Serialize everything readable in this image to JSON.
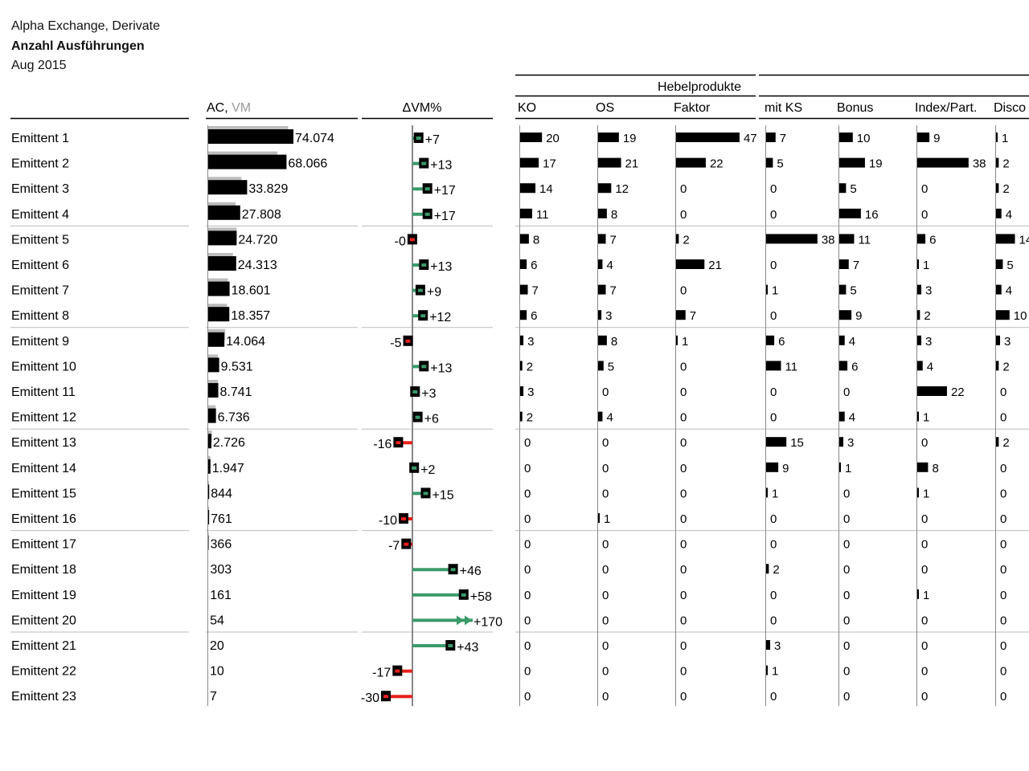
{
  "title": {
    "line1": "Alpha Exchange, Derivate",
    "line2": "Anzahl Ausführungen",
    "line3": "Aug 2015"
  },
  "colors": {
    "bar": "#000000",
    "vm_bar": "#bdbdbd",
    "positive": "#3a9a6a",
    "negative": "#e8201c",
    "axis": "#888888",
    "rule": "#000000",
    "separator": "#bbbbbb",
    "vm_header": "#999999"
  },
  "chart_data": {
    "type": "table",
    "headers": {
      "ac": "AC,",
      "vm": "VM",
      "dvm": "ΔVM%",
      "group": "Hebelprodukte",
      "products": [
        "KO",
        "OS",
        "Faktor",
        "mit KS",
        "Bonus",
        "Index/Part.",
        "Disco"
      ]
    },
    "rows": [
      {
        "name": "Emittent 1",
        "ac": 74074,
        "ac_label": "74.074",
        "vm": 69500,
        "dvm": 7,
        "dvm_label": "+7",
        "p": [
          20,
          19,
          47,
          7,
          10,
          9,
          1
        ]
      },
      {
        "name": "Emittent 2",
        "ac": 68066,
        "ac_label": "68.066",
        "vm": 60200,
        "dvm": 13,
        "dvm_label": "+13",
        "p": [
          17,
          21,
          22,
          5,
          19,
          38,
          2
        ]
      },
      {
        "name": "Emittent 3",
        "ac": 33829,
        "ac_label": "33.829",
        "vm": 28900,
        "dvm": 17,
        "dvm_label": "+17",
        "p": [
          14,
          12,
          0,
          0,
          5,
          0,
          2
        ]
      },
      {
        "name": "Emittent 4",
        "ac": 27808,
        "ac_label": "27.808",
        "vm": 23800,
        "dvm": 17,
        "dvm_label": "+17",
        "p": [
          11,
          8,
          0,
          0,
          16,
          0,
          4
        ]
      },
      {
        "name": "Emittent 5",
        "ac": 24720,
        "ac_label": "24.720",
        "vm": 24750,
        "dvm": -0.1,
        "dvm_label": "-0",
        "p": [
          8,
          7,
          2,
          38,
          11,
          6,
          14
        ]
      },
      {
        "name": "Emittent 6",
        "ac": 24313,
        "ac_label": "24.313",
        "vm": 21500,
        "dvm": 13,
        "dvm_label": "+13",
        "p": [
          6,
          4,
          21,
          0,
          7,
          1,
          5
        ]
      },
      {
        "name": "Emittent 7",
        "ac": 18601,
        "ac_label": "18.601",
        "vm": 17100,
        "dvm": 9,
        "dvm_label": "+9",
        "p": [
          7,
          7,
          0,
          1,
          5,
          3,
          4
        ]
      },
      {
        "name": "Emittent 8",
        "ac": 18357,
        "ac_label": "18.357",
        "vm": 16400,
        "dvm": 12,
        "dvm_label": "+12",
        "p": [
          6,
          3,
          7,
          0,
          9,
          2,
          10
        ]
      },
      {
        "name": "Emittent 9",
        "ac": 14064,
        "ac_label": "14.064",
        "vm": 14800,
        "dvm": -5,
        "dvm_label": "-5",
        "p": [
          3,
          8,
          1,
          6,
          4,
          3,
          3
        ]
      },
      {
        "name": "Emittent 10",
        "ac": 9531,
        "ac_label": "9.531",
        "vm": 8430,
        "dvm": 13,
        "dvm_label": "+13",
        "p": [
          2,
          5,
          0,
          11,
          6,
          4,
          2
        ]
      },
      {
        "name": "Emittent 11",
        "ac": 8741,
        "ac_label": "8.741",
        "vm": 8490,
        "dvm": 3,
        "dvm_label": "+3",
        "p": [
          3,
          0,
          0,
          0,
          0,
          22,
          0
        ]
      },
      {
        "name": "Emittent 12",
        "ac": 6736,
        "ac_label": "6.736",
        "vm": 6360,
        "dvm": 6,
        "dvm_label": "+6",
        "p": [
          2,
          4,
          0,
          0,
          4,
          1,
          0
        ]
      },
      {
        "name": "Emittent 13",
        "ac": 2726,
        "ac_label": "2.726",
        "vm": 3250,
        "dvm": -16,
        "dvm_label": "-16",
        "p": [
          0,
          0,
          0,
          15,
          3,
          0,
          2
        ]
      },
      {
        "name": "Emittent 14",
        "ac": 1947,
        "ac_label": "1.947",
        "vm": 1910,
        "dvm": 2,
        "dvm_label": "+2",
        "p": [
          0,
          0,
          0,
          9,
          1,
          8,
          0
        ]
      },
      {
        "name": "Emittent 15",
        "ac": 844,
        "ac_label": "844",
        "vm": 734,
        "dvm": 15,
        "dvm_label": "+15",
        "p": [
          0,
          0,
          0,
          1,
          0,
          1,
          0
        ]
      },
      {
        "name": "Emittent 16",
        "ac": 761,
        "ac_label": "761",
        "vm": 846,
        "dvm": -10,
        "dvm_label": "-10",
        "p": [
          0,
          1,
          0,
          0,
          0,
          0,
          0
        ]
      },
      {
        "name": "Emittent 17",
        "ac": 366,
        "ac_label": "366",
        "vm": 394,
        "dvm": -7,
        "dvm_label": "-7",
        "p": [
          0,
          0,
          0,
          0,
          0,
          0,
          0
        ]
      },
      {
        "name": "Emittent 18",
        "ac": 303,
        "ac_label": "303",
        "vm": 207,
        "dvm": 46,
        "dvm_label": "+46",
        "p": [
          0,
          0,
          0,
          2,
          0,
          0,
          0
        ]
      },
      {
        "name": "Emittent 19",
        "ac": 161,
        "ac_label": "161",
        "vm": 102,
        "dvm": 58,
        "dvm_label": "+58",
        "p": [
          0,
          0,
          0,
          0,
          0,
          1,
          0
        ]
      },
      {
        "name": "Emittent 20",
        "ac": 54,
        "ac_label": "54",
        "vm": 20,
        "dvm": 170,
        "dvm_label": "+170",
        "p": [
          0,
          0,
          0,
          0,
          0,
          0,
          0
        ]
      },
      {
        "name": "Emittent 21",
        "ac": 20,
        "ac_label": "20",
        "vm": 14,
        "dvm": 43,
        "dvm_label": "+43",
        "p": [
          0,
          0,
          0,
          3,
          0,
          0,
          0
        ]
      },
      {
        "name": "Emittent 22",
        "ac": 10,
        "ac_label": "10",
        "vm": 12,
        "dvm": -17,
        "dvm_label": "-17",
        "p": [
          0,
          0,
          0,
          1,
          0,
          0,
          0
        ]
      },
      {
        "name": "Emittent 23",
        "ac": 7,
        "ac_label": "7",
        "vm": 10,
        "dvm": -30,
        "dvm_label": "-30",
        "p": [
          0,
          0,
          0,
          0,
          0,
          0,
          0
        ]
      }
    ]
  }
}
